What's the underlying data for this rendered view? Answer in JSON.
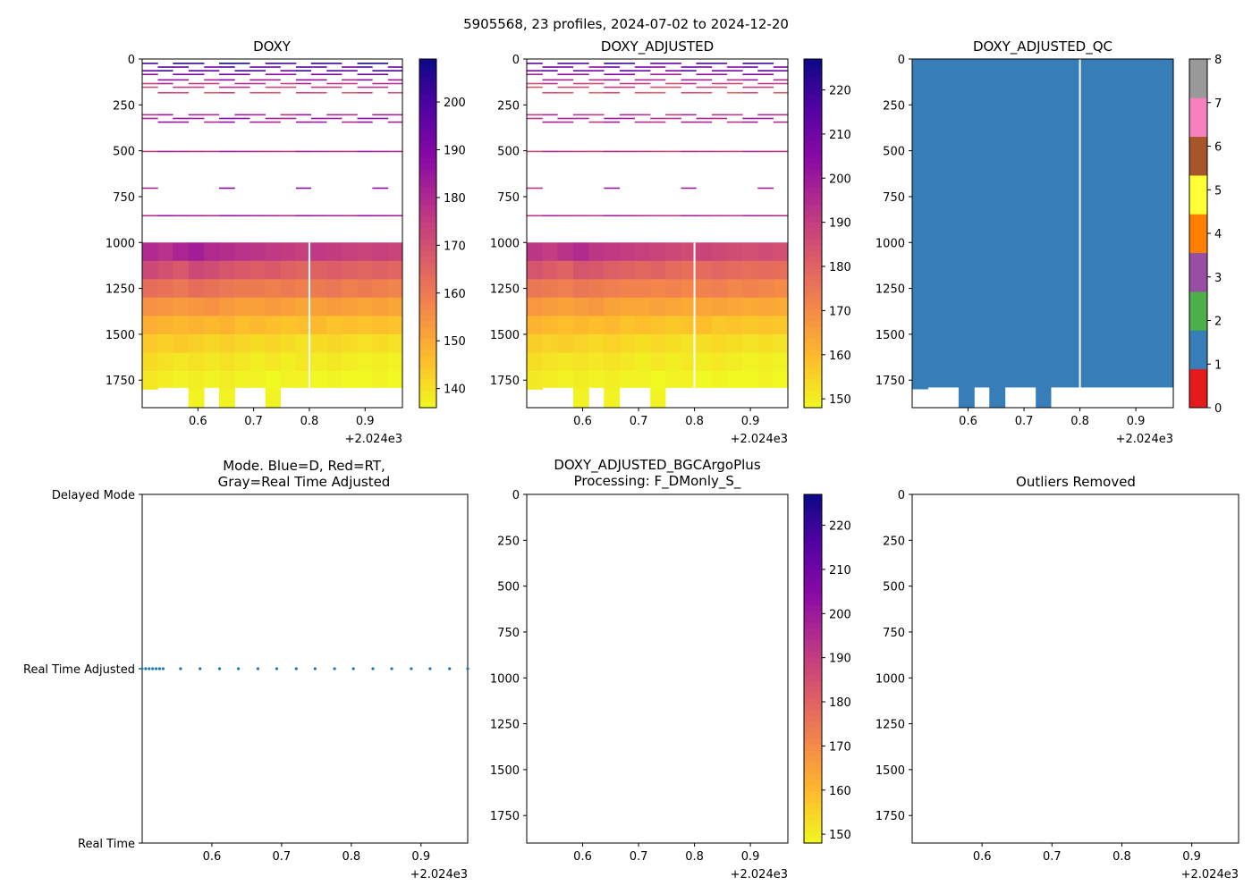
{
  "figure_title": "5905568, 23 profiles, 2024-07-02 to 2024-12-20",
  "offset_label": "+2.024e3",
  "chart_data": [
    {
      "id": "doxy",
      "type": "heatmap",
      "title": "DOXY",
      "xlim": [
        0.5,
        0.967
      ],
      "ylim": [
        1900,
        0
      ],
      "x_ticks": [
        0.6,
        0.7,
        0.8,
        0.9
      ],
      "x_tick_labels": [
        "0.6",
        "0.7",
        "0.8",
        "0.9"
      ],
      "y_ticks": [
        0,
        250,
        500,
        750,
        1000,
        1250,
        1500,
        1750
      ],
      "y_tick_labels": [
        "0",
        "250",
        "500",
        "750",
        "1000",
        "1250",
        "1500",
        "1750"
      ],
      "colormap": "plasma_r",
      "colorbar_range": [
        136,
        209
      ],
      "colorbar_ticks": [
        140,
        150,
        160,
        170,
        180,
        190,
        200
      ],
      "colorbar_tick_labels": [
        "140",
        "150",
        "160",
        "170",
        "180",
        "190",
        "200"
      ],
      "profile_x": [
        0.5,
        0.528,
        0.555,
        0.583,
        0.611,
        0.638,
        0.666,
        0.693,
        0.721,
        0.748,
        0.776,
        0.803,
        0.831,
        0.858,
        0.886,
        0.913,
        0.941,
        0.967
      ],
      "gap_at_x": 0.8,
      "depth_bins": [
        1000,
        1100,
        1200,
        1300,
        1400,
        1500,
        1600,
        1700,
        1800
      ],
      "values": [
        [
          180,
          178,
          181,
          183,
          180,
          179,
          178,
          177,
          176,
          175,
          174,
          176,
          175,
          174,
          173,
          174,
          173
        ],
        [
          172,
          170,
          168,
          172,
          171,
          169,
          168,
          167,
          168,
          166,
          165,
          166,
          167,
          166,
          165,
          166,
          165
        ],
        [
          163,
          162,
          161,
          163,
          162,
          161,
          160,
          160,
          159,
          160,
          159,
          160,
          161,
          159,
          160,
          159,
          158
        ],
        [
          155,
          154,
          153,
          154,
          155,
          153,
          152,
          152,
          153,
          152,
          151,
          152,
          153,
          152,
          151,
          152,
          151
        ],
        [
          149,
          148,
          147,
          148,
          147,
          148,
          146,
          147,
          146,
          145,
          146,
          147,
          145,
          146,
          145,
          146,
          145
        ],
        [
          144,
          143,
          144,
          143,
          142,
          143,
          142,
          141,
          142,
          141,
          140,
          141,
          142,
          141,
          140,
          141,
          140
        ],
        [
          141,
          140,
          139,
          140,
          139,
          140,
          139,
          138,
          139,
          138,
          139,
          138,
          139,
          138,
          137,
          138,
          137
        ],
        [
          139,
          138,
          137,
          138,
          137,
          138,
          137,
          137,
          136,
          137,
          137,
          136,
          137,
          136,
          136,
          137,
          136
        ],
        [
          138,
          137,
          136,
          137,
          136,
          137,
          136,
          136,
          137,
          136,
          136,
          137,
          136,
          136,
          136,
          136,
          136
        ]
      ],
      "max_depth": [
        1800,
        1790,
        1790,
        1900,
        1790,
        1900,
        1790,
        1790,
        1900,
        1790,
        1790,
        1790,
        1790,
        1790,
        1790,
        1790,
        1790,
        1700
      ],
      "shallow_layers": [
        20,
        40,
        60,
        80,
        110,
        130,
        150,
        180,
        300,
        320,
        340,
        500,
        700,
        850
      ],
      "shallow_values": [
        205,
        195,
        200,
        190,
        185,
        178,
        175,
        170,
        182,
        185,
        183,
        180,
        185,
        183
      ]
    },
    {
      "id": "doxy_adjusted",
      "type": "heatmap",
      "title": "DOXY_ADJUSTED",
      "xlim": [
        0.5,
        0.967
      ],
      "ylim": [
        1900,
        0
      ],
      "x_ticks": [
        0.6,
        0.7,
        0.8,
        0.9
      ],
      "x_tick_labels": [
        "0.6",
        "0.7",
        "0.8",
        "0.9"
      ],
      "y_ticks": [
        0,
        250,
        500,
        750,
        1000,
        1250,
        1500,
        1750
      ],
      "y_tick_labels": [
        "0",
        "250",
        "500",
        "750",
        "1000",
        "1250",
        "1500",
        "1750"
      ],
      "colormap": "plasma_r",
      "colorbar_range": [
        148,
        227
      ],
      "colorbar_ticks": [
        150,
        160,
        170,
        180,
        190,
        200,
        210,
        220
      ],
      "colorbar_tick_labels": [
        "150",
        "160",
        "170",
        "180",
        "190",
        "200",
        "210",
        "220"
      ]
    },
    {
      "id": "doxy_adjusted_qc",
      "type": "heatmap",
      "title": "DOXY_ADJUSTED_QC",
      "xlim": [
        0.5,
        0.967
      ],
      "ylim": [
        1900,
        0
      ],
      "x_ticks": [
        0.6,
        0.7,
        0.8,
        0.9
      ],
      "x_tick_labels": [
        "0.6",
        "0.7",
        "0.8",
        "0.9"
      ],
      "y_ticks": [
        0,
        250,
        500,
        750,
        1000,
        1250,
        1500,
        1750
      ],
      "y_tick_labels": [
        "0",
        "250",
        "500",
        "750",
        "1000",
        "1250",
        "1500",
        "1750"
      ],
      "qc_value": 1,
      "qc_color": "#377eb8",
      "colorbar_range": [
        0,
        8
      ],
      "colorbar_ticks": [
        0,
        1,
        2,
        3,
        4,
        5,
        6,
        7,
        8
      ],
      "colorbar_tick_labels": [
        "0",
        "1",
        "2",
        "3",
        "4",
        "5",
        "6",
        "7",
        "8"
      ],
      "qc_colors": [
        "#e41a1c",
        "#377eb8",
        "#4daf4a",
        "#984ea3",
        "#ff7f00",
        "#ffff33",
        "#a65628",
        "#f781bf",
        "#999999"
      ]
    },
    {
      "id": "mode",
      "type": "scatter",
      "title_lines": [
        "Mode. Blue=D, Red=RT,",
        "Gray=Real Time Adjusted"
      ],
      "xlim": [
        0.5,
        0.967
      ],
      "ylim": [
        0,
        2
      ],
      "x_ticks": [
        0.6,
        0.7,
        0.8,
        0.9
      ],
      "x_tick_labels": [
        "0.6",
        "0.7",
        "0.8",
        "0.9"
      ],
      "y_ticks": [
        0,
        1,
        2
      ],
      "y_tick_labels": [
        "Real Time",
        "Real Time Adjusted",
        "Delayed Mode"
      ],
      "point_color": "#1f77b4",
      "points_x": [
        0.5,
        0.505,
        0.51,
        0.515,
        0.52,
        0.525,
        0.53,
        0.555,
        0.583,
        0.611,
        0.638,
        0.666,
        0.693,
        0.721,
        0.748,
        0.776,
        0.803,
        0.831,
        0.858,
        0.886,
        0.913,
        0.941,
        0.967
      ],
      "points_y": 1
    },
    {
      "id": "bgcargoplus",
      "type": "heatmap",
      "title_lines": [
        "DOXY_ADJUSTED_BGCArgoPlus",
        "Processing: F_DMonly_S_"
      ],
      "xlim": [
        0.5,
        0.967
      ],
      "ylim": [
        1900,
        0
      ],
      "x_ticks": [
        0.6,
        0.7,
        0.8,
        0.9
      ],
      "x_tick_labels": [
        "0.6",
        "0.7",
        "0.8",
        "0.9"
      ],
      "y_ticks": [
        0,
        250,
        500,
        750,
        1000,
        1250,
        1500,
        1750
      ],
      "y_tick_labels": [
        "0",
        "250",
        "500",
        "750",
        "1000",
        "1250",
        "1500",
        "1750"
      ],
      "colormap": "plasma_r",
      "colorbar_range": [
        148,
        227
      ],
      "colorbar_ticks": [
        150,
        160,
        170,
        180,
        190,
        200,
        210,
        220
      ],
      "colorbar_tick_labels": [
        "150",
        "160",
        "170",
        "180",
        "190",
        "200",
        "210",
        "220"
      ]
    },
    {
      "id": "outliers",
      "type": "scatter",
      "title": "Outliers Removed",
      "xlim": [
        0.5,
        0.967
      ],
      "ylim": [
        1900,
        0
      ],
      "x_ticks": [
        0.6,
        0.7,
        0.8,
        0.9
      ],
      "x_tick_labels": [
        "0.6",
        "0.7",
        "0.8",
        "0.9"
      ],
      "y_ticks": [
        0,
        250,
        500,
        750,
        1000,
        1250,
        1500,
        1750
      ],
      "y_tick_labels": [
        "0",
        "250",
        "500",
        "750",
        "1000",
        "1250",
        "1500",
        "1750"
      ]
    }
  ]
}
